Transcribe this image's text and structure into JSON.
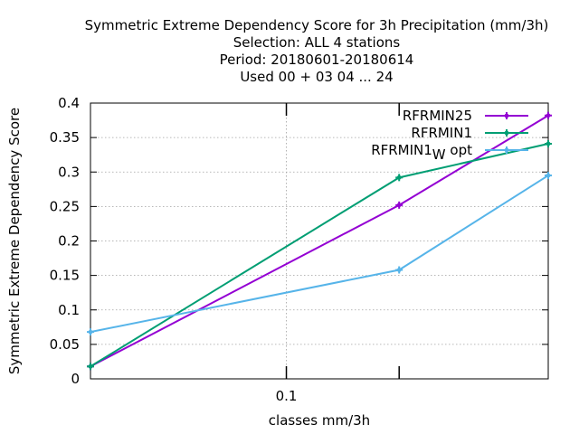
{
  "chart_data": {
    "type": "line",
    "title_lines": [
      "Symmetric Extreme Dependency Score  for 3h Precipitation (mm/3h)",
      "Selection: ALL      4 stations",
      "Period: 20180601-20180614",
      "Used  00 + 03 04 ... 24"
    ],
    "xlabel": "classes mm/3h",
    "ylabel": "Symmetric Extreme Dependency Score",
    "x_scale": "log",
    "xlim": [
      0.03,
      0.5
    ],
    "ylim": [
      0,
      0.4
    ],
    "x_ticks": [
      {
        "value": 0.1,
        "label": "0.1"
      }
    ],
    "x_minor_ticks": [
      0.2
    ],
    "y_ticks": [
      {
        "value": 0,
        "label": "0"
      },
      {
        "value": 0.05,
        "label": "0.05"
      },
      {
        "value": 0.1,
        "label": "0.1"
      },
      {
        "value": 0.15,
        "label": "0.15"
      },
      {
        "value": 0.2,
        "label": "0.2"
      },
      {
        "value": 0.25,
        "label": "0.25"
      },
      {
        "value": 0.3,
        "label": "0.3"
      },
      {
        "value": 0.35,
        "label": "0.35"
      },
      {
        "value": 0.4,
        "label": "0.4"
      }
    ],
    "grid": true,
    "legend_position": "top-right",
    "x": [
      0.03,
      0.2,
      0.5
    ],
    "series": [
      {
        "name": "RFRMIN25",
        "name_sub": "",
        "name_suffix": "",
        "color": "#9400d3",
        "marker": "plus",
        "values": [
          0.018,
          0.252,
          0.382
        ]
      },
      {
        "name": "RFRMIN1",
        "name_sub": "",
        "name_suffix": "",
        "color": "#009e73",
        "marker": "plus",
        "values": [
          0.018,
          0.292,
          0.341
        ]
      },
      {
        "name": "RFRMIN1",
        "name_sub": "W",
        "name_suffix": " opt",
        "color": "#56b4e9",
        "marker": "plus",
        "values": [
          0.068,
          0.158,
          0.295
        ]
      }
    ]
  }
}
